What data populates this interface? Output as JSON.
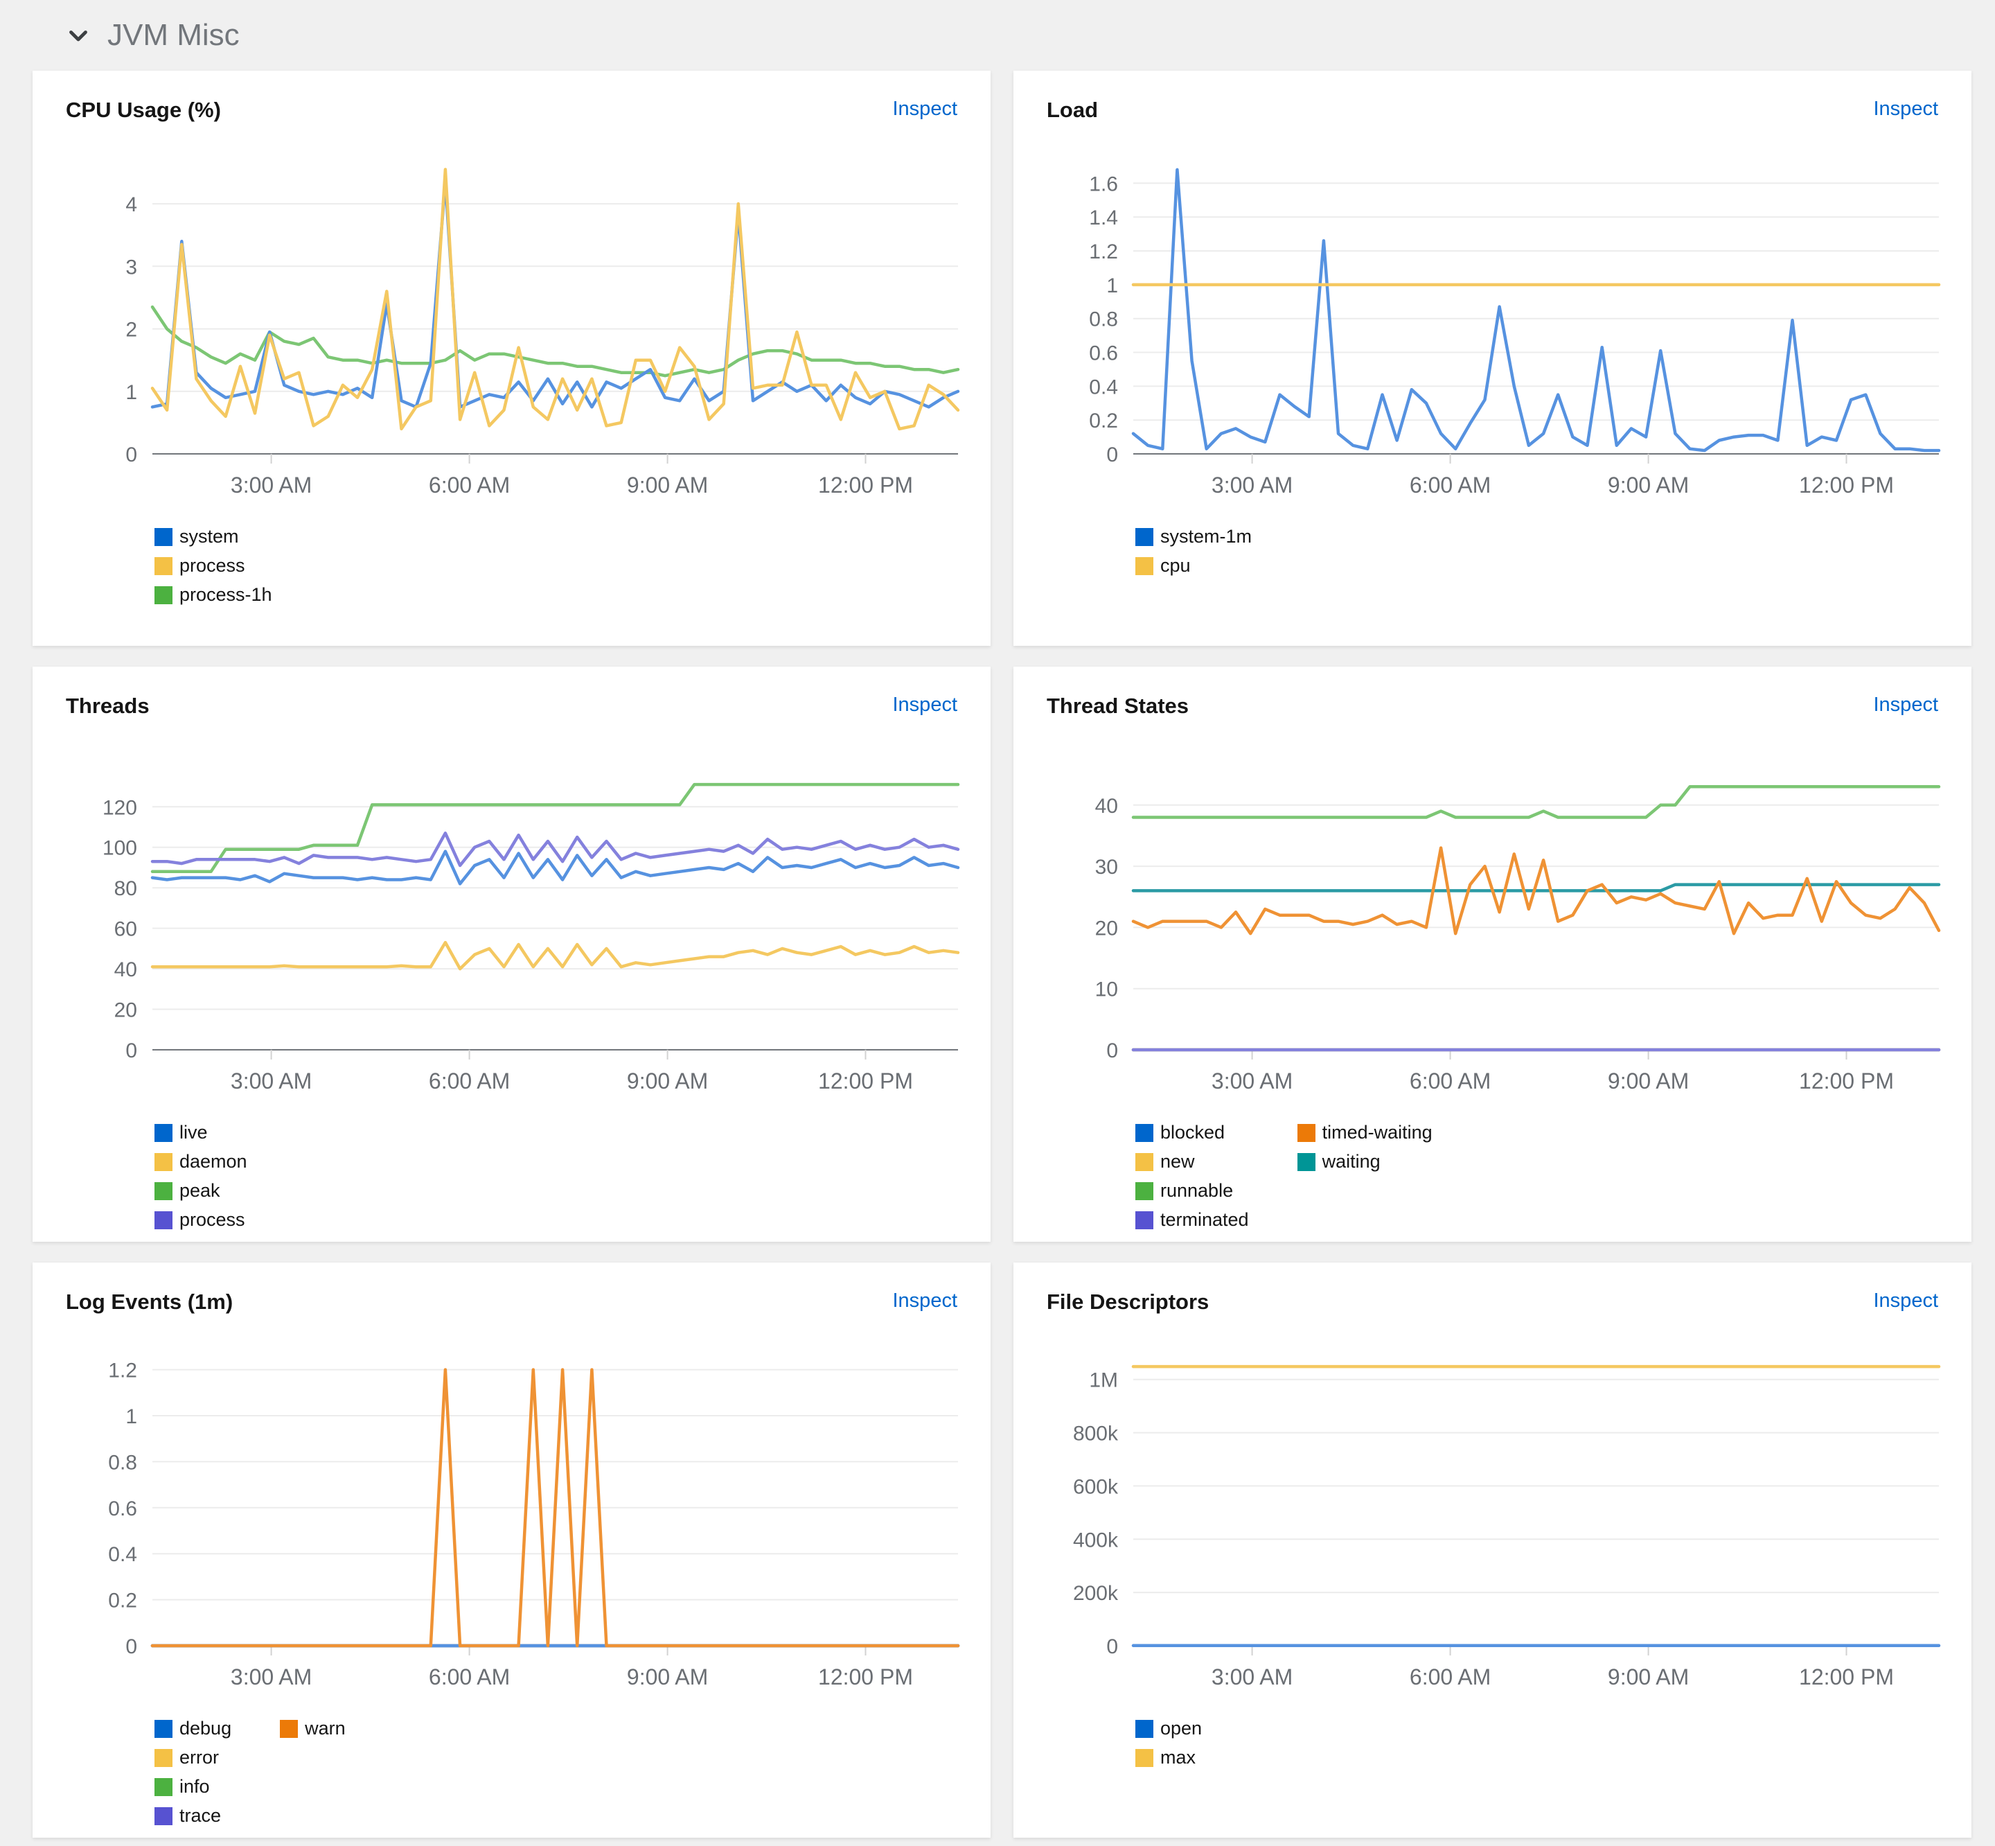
{
  "section": {
    "title": "JVM Misc"
  },
  "colors": {
    "page_background": "#f0f0f0",
    "card_background": "#ffffff",
    "link_blue": "#0066cc",
    "axis_text": "#6a6e73",
    "gridline": "#ececec",
    "axis_baseline": "#72767b"
  },
  "chart_data": [
    {
      "type": "line",
      "title": "CPU Usage (%)",
      "inspect_label": "Inspect",
      "x_domain": [
        1.2,
        13.4
      ],
      "x_tick_values": [
        3,
        6,
        9,
        12
      ],
      "x_ticks": [
        "3:00 AM",
        "6:00 AM",
        "9:00 AM",
        "12:00 PM"
      ],
      "y_domain": [
        0,
        4.6
      ],
      "y_ticks": [
        0,
        1,
        2,
        3,
        4
      ],
      "y_tick_labels": [
        "0",
        "1",
        "2",
        "3",
        "4"
      ],
      "legend_rows": 3,
      "draw_order": [
        2,
        0,
        1
      ],
      "series": [
        {
          "name": "system",
          "color": "#5692e0",
          "legend_color": "#0066cc",
          "values": [
            0.75,
            0.8,
            3.4,
            1.3,
            1.05,
            0.9,
            0.95,
            1.0,
            1.95,
            1.1,
            1.0,
            0.95,
            1.0,
            0.95,
            1.05,
            0.9,
            2.4,
            0.85,
            0.75,
            1.45,
            4.35,
            0.75,
            0.85,
            0.95,
            0.9,
            1.15,
            0.85,
            1.2,
            0.8,
            1.15,
            0.75,
            1.15,
            1.05,
            1.2,
            1.35,
            0.9,
            0.85,
            1.2,
            0.85,
            1.0,
            3.85,
            0.85,
            1.0,
            1.15,
            1.0,
            1.1,
            0.85,
            1.1,
            0.9,
            0.8,
            1.0,
            0.95,
            0.85,
            0.75,
            0.9,
            1.0
          ]
        },
        {
          "name": "process",
          "color": "#f4c861",
          "legend_color": "#f4c145",
          "values": [
            1.05,
            0.7,
            3.35,
            1.2,
            0.85,
            0.6,
            1.4,
            0.65,
            1.9,
            1.2,
            1.3,
            0.45,
            0.6,
            1.1,
            0.9,
            1.35,
            2.6,
            0.4,
            0.75,
            0.85,
            4.55,
            0.55,
            1.3,
            0.45,
            0.7,
            1.7,
            0.75,
            0.55,
            1.2,
            0.7,
            1.2,
            0.45,
            0.5,
            1.5,
            1.5,
            1.0,
            1.7,
            1.4,
            0.55,
            0.8,
            4.0,
            1.05,
            1.1,
            1.1,
            1.95,
            1.1,
            1.1,
            0.55,
            1.3,
            0.9,
            1.0,
            0.4,
            0.45,
            1.1,
            0.95,
            0.7
          ]
        },
        {
          "name": "process-1h",
          "color": "#7cc674",
          "legend_color": "#4cb140",
          "values": [
            2.35,
            2.0,
            1.8,
            1.7,
            1.55,
            1.45,
            1.6,
            1.5,
            1.95,
            1.8,
            1.75,
            1.85,
            1.55,
            1.5,
            1.5,
            1.45,
            1.5,
            1.45,
            1.45,
            1.45,
            1.5,
            1.65,
            1.5,
            1.6,
            1.6,
            1.55,
            1.5,
            1.45,
            1.45,
            1.4,
            1.4,
            1.35,
            1.3,
            1.3,
            1.3,
            1.25,
            1.3,
            1.35,
            1.3,
            1.35,
            1.5,
            1.6,
            1.65,
            1.65,
            1.6,
            1.5,
            1.5,
            1.5,
            1.45,
            1.45,
            1.4,
            1.4,
            1.35,
            1.35,
            1.3,
            1.35
          ]
        }
      ]
    },
    {
      "type": "line",
      "title": "Load",
      "inspect_label": "Inspect",
      "x_domain": [
        1.2,
        13.4
      ],
      "x_tick_values": [
        3,
        6,
        9,
        12
      ],
      "x_ticks": [
        "3:00 AM",
        "6:00 AM",
        "9:00 AM",
        "12:00 PM"
      ],
      "y_domain": [
        0,
        1.7
      ],
      "y_ticks": [
        0,
        0.2,
        0.4,
        0.6,
        0.8,
        1,
        1.2,
        1.4,
        1.6
      ],
      "y_tick_labels": [
        "0",
        "0.2",
        "0.4",
        "0.6",
        "0.8",
        "1",
        "1.2",
        "1.4",
        "1.6"
      ],
      "legend_rows": 2,
      "draw_order": [
        0,
        1
      ],
      "series": [
        {
          "name": "system-1m",
          "color": "#5692e0",
          "legend_color": "#0066cc",
          "values": [
            0.12,
            0.05,
            0.03,
            1.68,
            0.55,
            0.03,
            0.12,
            0.15,
            0.1,
            0.07,
            0.35,
            0.28,
            0.22,
            1.26,
            0.12,
            0.05,
            0.03,
            0.35,
            0.08,
            0.38,
            0.3,
            0.12,
            0.03,
            0.18,
            0.32,
            0.87,
            0.4,
            0.05,
            0.12,
            0.35,
            0.1,
            0.05,
            0.63,
            0.05,
            0.15,
            0.1,
            0.61,
            0.12,
            0.03,
            0.02,
            0.08,
            0.1,
            0.11,
            0.11,
            0.08,
            0.79,
            0.05,
            0.1,
            0.08,
            0.32,
            0.35,
            0.12,
            0.03,
            0.03,
            0.02,
            0.02
          ]
        },
        {
          "name": "cpu",
          "color": "#f4c861",
          "legend_color": "#f4c145",
          "values": [
            1,
            1
          ]
        }
      ]
    },
    {
      "type": "line",
      "title": "Threads",
      "inspect_label": "Inspect",
      "x_domain": [
        1.2,
        13.4
      ],
      "x_tick_values": [
        3,
        6,
        9,
        12
      ],
      "x_ticks": [
        "3:00 AM",
        "6:00 AM",
        "9:00 AM",
        "12:00 PM"
      ],
      "y_domain": [
        0,
        142
      ],
      "y_ticks": [
        0,
        20,
        40,
        60,
        80,
        100,
        120
      ],
      "y_tick_labels": [
        "0",
        "20",
        "40",
        "60",
        "80",
        "100",
        "120"
      ],
      "legend_rows": 4,
      "draw_order": [
        2,
        3,
        0,
        1
      ],
      "series": [
        {
          "name": "live",
          "color": "#5692e0",
          "legend_color": "#0066cc",
          "values": [
            85,
            84,
            85,
            85,
            85,
            85,
            84,
            86,
            83,
            87,
            86,
            85,
            85,
            85,
            84,
            85,
            84,
            84,
            85,
            84,
            98,
            82,
            91,
            94,
            85,
            97,
            85,
            94,
            84,
            96,
            86,
            94,
            85,
            88,
            86,
            87,
            88,
            89,
            90,
            89,
            92,
            88,
            95,
            90,
            91,
            90,
            92,
            94,
            90,
            92,
            90,
            91,
            95,
            91,
            92,
            90
          ]
        },
        {
          "name": "daemon",
          "color": "#f4c861",
          "legend_color": "#f4c145",
          "values": [
            41,
            41,
            41,
            41,
            41,
            41,
            41,
            41,
            41,
            41.5,
            41,
            41,
            41,
            41,
            41,
            41,
            41,
            41.5,
            41,
            41,
            53,
            40,
            47,
            50,
            41,
            52,
            41,
            50,
            41,
            52,
            42,
            50,
            41,
            43,
            42,
            43,
            44,
            45,
            46,
            46,
            48,
            49,
            47,
            50,
            48,
            47,
            49,
            51,
            47,
            49,
            47,
            48,
            51,
            48,
            49,
            48
          ]
        },
        {
          "name": "peak",
          "color": "#7cc674",
          "legend_color": "#4cb140",
          "values": [
            88,
            88,
            88,
            88,
            88,
            99,
            99,
            99,
            99,
            99,
            99,
            101,
            101,
            101,
            101,
            121,
            121,
            121,
            121,
            121,
            121,
            121,
            121,
            121,
            121,
            121,
            121,
            121,
            121,
            121,
            121,
            121,
            121,
            121,
            121,
            121,
            121,
            131,
            131,
            131,
            131,
            131,
            131,
            131,
            131,
            131,
            131,
            131,
            131,
            131,
            131,
            131,
            131,
            131,
            131,
            131
          ]
        },
        {
          "name": "process",
          "color": "#8481dd",
          "legend_color": "#5752d1",
          "values": [
            93,
            93,
            92,
            94,
            94,
            94,
            94,
            94,
            93,
            95,
            92,
            96,
            95,
            95,
            95,
            94,
            95,
            94,
            93,
            94,
            107,
            91,
            100,
            103,
            94,
            106,
            94,
            103,
            93,
            105,
            95,
            103,
            94,
            97,
            95,
            96,
            97,
            98,
            99,
            98,
            101,
            97,
            104,
            99,
            100,
            99,
            101,
            103,
            99,
            101,
            99,
            100,
            104,
            100,
            101,
            99
          ]
        }
      ]
    },
    {
      "type": "line",
      "title": "Thread States",
      "inspect_label": "Inspect",
      "x_domain": [
        1.2,
        13.4
      ],
      "x_tick_values": [
        3,
        6,
        9,
        12
      ],
      "x_ticks": [
        "3:00 AM",
        "6:00 AM",
        "9:00 AM",
        "12:00 PM"
      ],
      "y_domain": [
        0,
        47
      ],
      "y_ticks": [
        0,
        10,
        20,
        30,
        40
      ],
      "y_tick_labels": [
        "0",
        "10",
        "20",
        "30",
        "40"
      ],
      "legend_rows": 4,
      "draw_order": [
        0,
        1,
        2,
        5,
        4,
        3
      ],
      "series": [
        {
          "name": "blocked",
          "color": "#5692e0",
          "legend_color": "#0066cc",
          "values": [
            0,
            0
          ]
        },
        {
          "name": "new",
          "color": "#f4c861",
          "legend_color": "#f4c145",
          "values": [
            0,
            0
          ]
        },
        {
          "name": "runnable",
          "color": "#7cc674",
          "legend_color": "#4cb140",
          "values": [
            38,
            38,
            38,
            38,
            38,
            38,
            38,
            38,
            38,
            38,
            38,
            38,
            38,
            38,
            38,
            38,
            38,
            38,
            38,
            38,
            38,
            39,
            38,
            38,
            38,
            38,
            38,
            38,
            39,
            38,
            38,
            38,
            38,
            38,
            38,
            38,
            40,
            40,
            43,
            43,
            43,
            43,
            43,
            43,
            43,
            43,
            43,
            43,
            43,
            43,
            43,
            43,
            43,
            43,
            43,
            43
          ]
        },
        {
          "name": "terminated",
          "color": "#8481dd",
          "legend_color": "#5752d1",
          "values": [
            0,
            0
          ]
        },
        {
          "name": "timed-waiting",
          "color": "#ef9234",
          "legend_color": "#ec7a08",
          "values": [
            21,
            20,
            21,
            21,
            21,
            21,
            20,
            22.5,
            19,
            23,
            22,
            22,
            22,
            21,
            21,
            20.5,
            21,
            22,
            20.5,
            21,
            20,
            33,
            19,
            27,
            30,
            22.5,
            32,
            23,
            31,
            21,
            22,
            26,
            27,
            24,
            25,
            24.5,
            25.5,
            24,
            23.5,
            23,
            27.5,
            19,
            24,
            21.5,
            22,
            22,
            28,
            21,
            27.5,
            24,
            22,
            21.5,
            23,
            26.5,
            24,
            19.5
          ]
        },
        {
          "name": "waiting",
          "color": "#2b9ba5",
          "legend_color": "#009596",
          "values": [
            26,
            26,
            26,
            26,
            26,
            26,
            26,
            26,
            26,
            26,
            26,
            26,
            26,
            26,
            26,
            26,
            26,
            26,
            26,
            26,
            26,
            26,
            26,
            26,
            26,
            26,
            26,
            26,
            26,
            26,
            26,
            26,
            26,
            26,
            26,
            26,
            26,
            27,
            27,
            27,
            27,
            27,
            27,
            27,
            27,
            27,
            27,
            27,
            27,
            27,
            27,
            27,
            27,
            27,
            27,
            27
          ]
        }
      ]
    },
    {
      "type": "line",
      "title": "Log Events (1m)",
      "inspect_label": "Inspect",
      "x_domain": [
        1.2,
        13.4
      ],
      "x_tick_values": [
        3,
        6,
        9,
        12
      ],
      "x_ticks": [
        "3:00 AM",
        "6:00 AM",
        "9:00 AM",
        "12:00 PM"
      ],
      "y_domain": [
        0,
        1.25
      ],
      "y_ticks": [
        0,
        0.2,
        0.4,
        0.6,
        0.8,
        1,
        1.2
      ],
      "y_tick_labels": [
        "0",
        "0.2",
        "0.4",
        "0.6",
        "0.8",
        "1",
        "1.2"
      ],
      "legend_rows": 4,
      "draw_order": [
        1,
        2,
        3,
        0,
        4
      ],
      "series": [
        {
          "name": "debug",
          "color": "#5692e0",
          "legend_color": "#0066cc",
          "values": [
            0,
            0
          ]
        },
        {
          "name": "error",
          "color": "#f4c861",
          "legend_color": "#f4c145",
          "values": [
            0,
            0
          ]
        },
        {
          "name": "info",
          "color": "#7cc674",
          "legend_color": "#4cb140",
          "values": [
            0,
            0
          ]
        },
        {
          "name": "trace",
          "color": "#8481dd",
          "legend_color": "#5752d1",
          "values": [
            0,
            0
          ]
        },
        {
          "name": "warn",
          "color": "#ef9234",
          "legend_color": "#ec7a08",
          "values": [
            0,
            0,
            0,
            0,
            0,
            0,
            0,
            0,
            0,
            0,
            0,
            0,
            0,
            0,
            0,
            0,
            0,
            0,
            0,
            0,
            1.2,
            0,
            0,
            0,
            0,
            0,
            1.2,
            0,
            1.2,
            0,
            1.2,
            0,
            0,
            0,
            0,
            0,
            0,
            0,
            0,
            0,
            0,
            0,
            0,
            0,
            0,
            0,
            0,
            0,
            0,
            0,
            0,
            0,
            0,
            0,
            0,
            0
          ]
        }
      ]
    },
    {
      "type": "line",
      "title": "File Descriptors",
      "inspect_label": "Inspect",
      "x_domain": [
        1.2,
        13.4
      ],
      "x_tick_values": [
        3,
        6,
        9,
        12
      ],
      "x_ticks": [
        "3:00 AM",
        "6:00 AM",
        "9:00 AM",
        "12:00 PM"
      ],
      "y_domain": [
        0,
        1080000
      ],
      "y_ticks": [
        0,
        200000,
        400000,
        600000,
        800000,
        1000000
      ],
      "y_tick_labels": [
        "0",
        "200k",
        "400k",
        "600k",
        "800k",
        "1M"
      ],
      "legend_rows": 2,
      "draw_order": [
        1,
        0
      ],
      "series": [
        {
          "name": "open",
          "color": "#5692e0",
          "legend_color": "#0066cc",
          "values": [
            400,
            400
          ]
        },
        {
          "name": "max",
          "color": "#f4c861",
          "legend_color": "#f4c145",
          "values": [
            1048576,
            1048576
          ]
        }
      ]
    }
  ]
}
